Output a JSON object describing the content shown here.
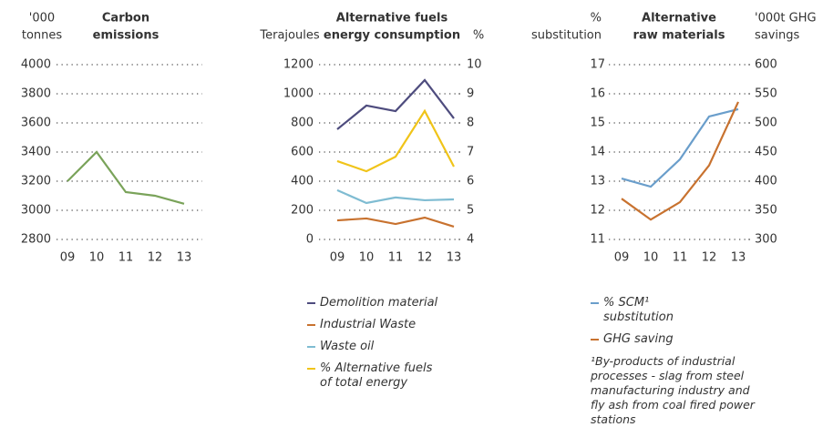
{
  "chart_data": [
    {
      "type": "line",
      "title": [
        "Carbon",
        "emissions"
      ],
      "y_label": [
        "'000",
        "tonnes"
      ],
      "categories": [
        "09",
        "10",
        "11",
        "12",
        "13"
      ],
      "values": [
        3200,
        3400,
        3125,
        3100,
        3045
      ],
      "color": "#7aa35a",
      "ylim": [
        2800,
        4000
      ],
      "yticks": [
        2800,
        3000,
        3200,
        3400,
        3600,
        3800,
        4000
      ]
    },
    {
      "type": "line",
      "title": [
        "Alternative fuels",
        "energy consumption"
      ],
      "y_label": [
        "Terajoules"
      ],
      "y2_label": [
        "%"
      ],
      "categories": [
        "09",
        "10",
        "11",
        "12",
        "13"
      ],
      "series": [
        {
          "name": "Demolition material",
          "color": "#4e4c7e",
          "values": [
            756,
            919,
            881,
            1094,
            831
          ]
        },
        {
          "name": "Industrial Waste",
          "color": "#c8722f",
          "values": [
            131,
            144,
            106,
            150,
            88
          ]
        },
        {
          "name": "Waste oil",
          "color": "#7fbcd2",
          "values": [
            338,
            250,
            288,
            269,
            275
          ]
        },
        {
          "name": "% Alternative fuels of total energy",
          "color": "#f0c419",
          "axis": "y2",
          "values": [
            6.69,
            6.34,
            6.84,
            8.41,
            6.5
          ]
        }
      ],
      "ylim": [
        0,
        1200
      ],
      "yticks": [
        0,
        200,
        400,
        600,
        800,
        1000,
        1200
      ],
      "y2lim": [
        4,
        10
      ],
      "y2ticks": [
        4,
        5,
        6,
        7,
        8,
        9,
        10
      ]
    },
    {
      "type": "line",
      "title": [
        "Alternative",
        "raw materials"
      ],
      "y_label": [
        "%",
        "substitution"
      ],
      "y2_label": [
        "'000t GHG",
        "savings"
      ],
      "categories": [
        "09",
        "10",
        "11",
        "12",
        "13"
      ],
      "series": [
        {
          "name": "% SCM¹ substitution",
          "color": "#6a9ecb",
          "values": [
            13.09,
            12.81,
            13.75,
            15.22,
            15.47
          ]
        },
        {
          "name": "GHG saving",
          "color": "#c8722f",
          "axis": "y2",
          "values": [
            370,
            334,
            364,
            427,
            536
          ]
        }
      ],
      "ylim": [
        11,
        17
      ],
      "yticks": [
        11,
        12,
        13,
        14,
        15,
        16,
        17
      ],
      "y2lim": [
        300,
        600
      ],
      "y2ticks": [
        300,
        350,
        400,
        450,
        500,
        550,
        600
      ],
      "footnote": "¹By-products of industrial processes - slag from steel manufacturing industry and fly ash from coal fired power stations"
    }
  ]
}
